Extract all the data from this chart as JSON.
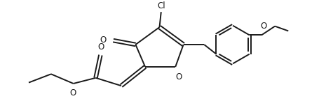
{
  "bg_color": "#ffffff",
  "line_color": "#1a1a1a",
  "line_width": 1.4,
  "font_size": 8.5,
  "fig_width": 4.55,
  "fig_height": 1.45,
  "dpi": 100,
  "xlim": [
    0,
    9.1
  ],
  "ylim": [
    0,
    2.9
  ]
}
